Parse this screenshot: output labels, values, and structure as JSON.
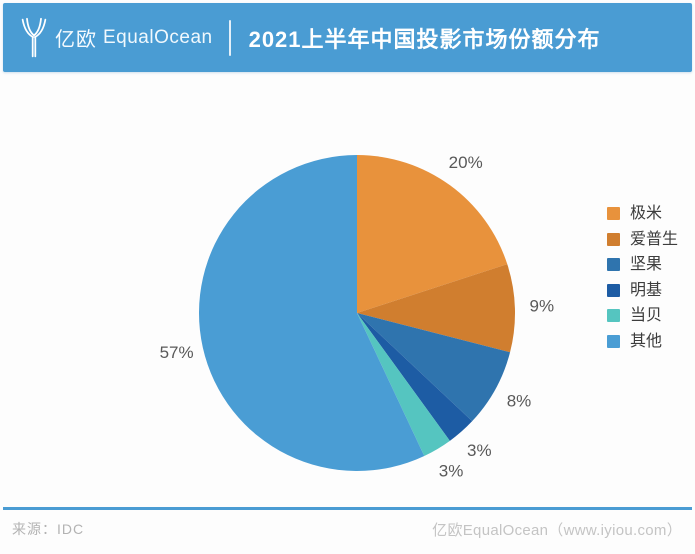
{
  "header": {
    "brand_cn": "亿欧",
    "brand_en": "EqualOcean",
    "title": "2021上半年中国投影市场份额分布"
  },
  "chart_data": {
    "type": "pie",
    "title": "2021上半年中国投影市场份额分布",
    "direction": "clockwise",
    "start_angle_deg": 0,
    "legend_position": "right",
    "data_labels": "percent-outside",
    "series": [
      {
        "label": "极米",
        "value_pct": 20,
        "data_label": "20%",
        "color": "#E8923C"
      },
      {
        "label": "爱普生",
        "value_pct": 9,
        "data_label": "9%",
        "color": "#D07E2F"
      },
      {
        "label": "坚果",
        "value_pct": 8,
        "data_label": "8%",
        "color": "#2F74AE"
      },
      {
        "label": "明基",
        "value_pct": 3,
        "data_label": "3%",
        "color": "#1D5CA4"
      },
      {
        "label": "当贝",
        "value_pct": 3,
        "data_label": "3%",
        "color": "#55C5C0"
      },
      {
        "label": "其他",
        "value_pct": 57,
        "data_label": "57%",
        "color": "#4A9DD4"
      }
    ]
  },
  "footer": {
    "source_label": "来源：IDC",
    "credit": "亿欧EqualOcean（www.iyiou.com）"
  },
  "colors": {
    "accent": "#4A9CD3",
    "slice_label_text": "#595959",
    "footer_text": "#B3B3B3"
  }
}
